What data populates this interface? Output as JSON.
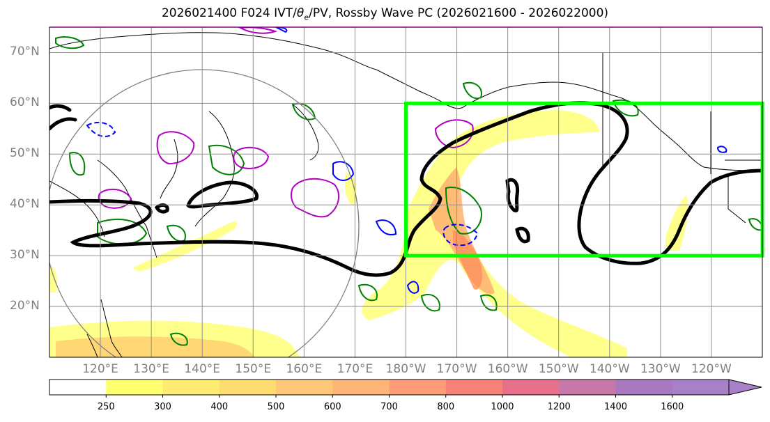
{
  "title": {
    "prefix": "2026021400 F024 IVT/",
    "theta": "θ",
    "sub": "e",
    "suffix": "/PV, Rossby Wave PC (2026021600 - 2026022000)"
  },
  "map": {
    "lat_labels": [
      "70°N",
      "60°N",
      "50°N",
      "40°N",
      "30°N",
      "20°N"
    ],
    "lat_values": [
      70,
      60,
      50,
      40,
      30,
      20
    ],
    "lon_labels": [
      "120°E",
      "130°E",
      "140°E",
      "150°E",
      "160°E",
      "170°E",
      "180°W",
      "170°W",
      "160°W",
      "150°W",
      "140°W",
      "130°W",
      "120°W"
    ],
    "lon_values": [
      120,
      130,
      140,
      150,
      160,
      170,
      180,
      190,
      200,
      210,
      220,
      230,
      240
    ],
    "lon_range": [
      110,
      250
    ],
    "lat_range": [
      10,
      75
    ],
    "region_box": {
      "lon": [
        180,
        250
      ],
      "lat": [
        30,
        60
      ],
      "color": "#00ff00"
    },
    "colors": {
      "ivt_light": "#ffff80",
      "ivt_mid": "#ffd070",
      "ivt_strong": "#ff9a60",
      "pv_contour": "#000000",
      "theta_positive": "#b000c0",
      "theta_negative": "#0000ff",
      "green_contour": "#008000"
    }
  },
  "colorbar": {
    "labels": [
      "250",
      "300",
      "400",
      "500",
      "600",
      "700",
      "800",
      "1000",
      "1200",
      "1400",
      "1600"
    ],
    "colors": [
      "#ffffff",
      "#ffff70",
      "#ffec70",
      "#ffdc70",
      "#ffc878",
      "#ffb478",
      "#ff9c78",
      "#f88278",
      "#e8708a",
      "#c878a8",
      "#a878c0",
      "#a880c8"
    ]
  }
}
